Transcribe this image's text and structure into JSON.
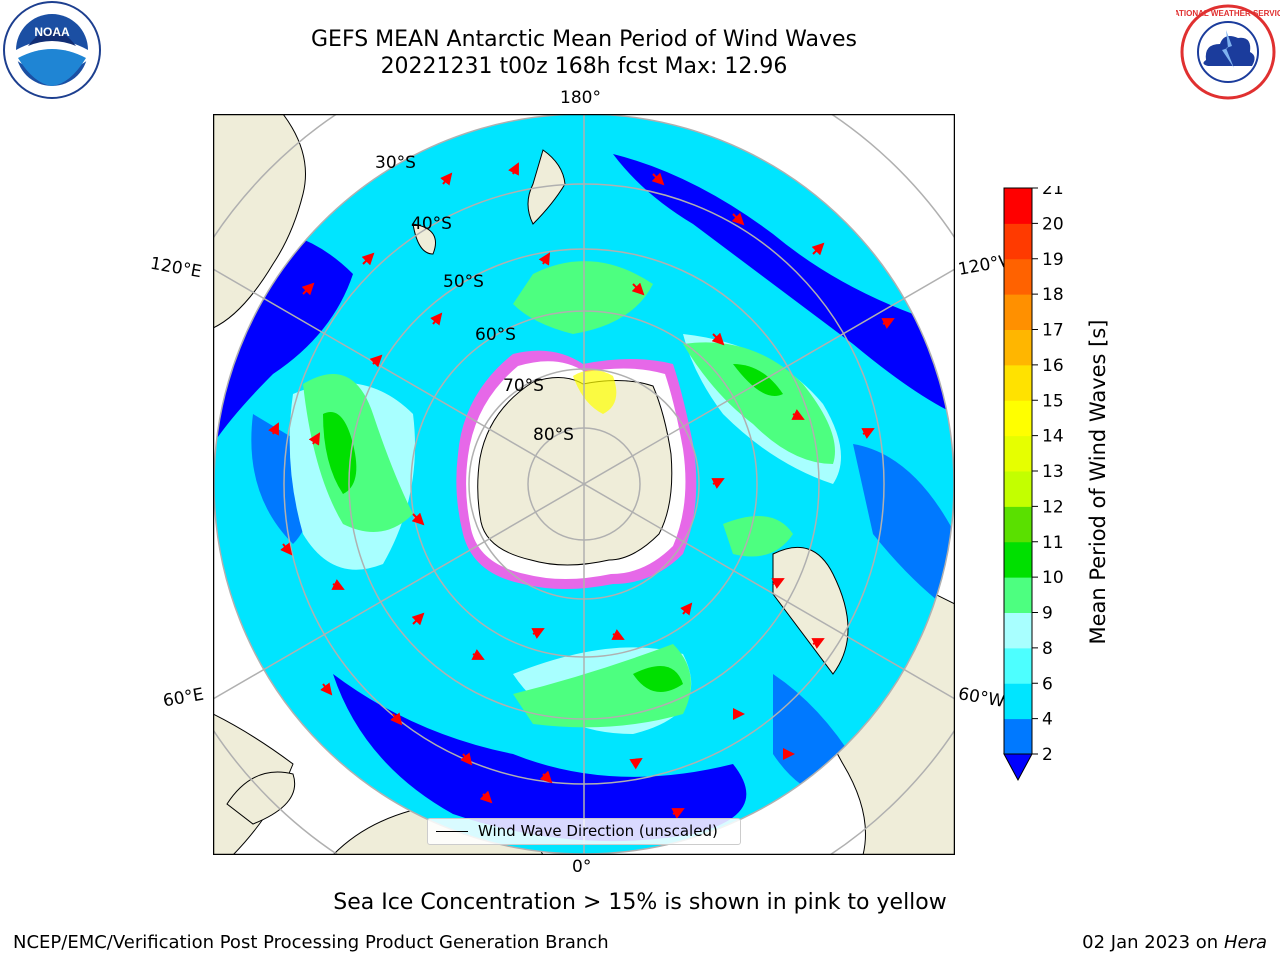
{
  "header": {
    "title_line1": "GEFS MEAN Antarctic Mean Period of Wind Waves",
    "title_line2": "20221231 t00z 168h fcst   Max: 12.96"
  },
  "logos": {
    "left": {
      "icon": "noaa-logo",
      "text": "NOAA"
    },
    "right": {
      "icon": "national-weather-service-logo",
      "text": "NATIONAL WEATHER SERVICE"
    }
  },
  "map": {
    "projection": "south-polar-stereographic",
    "longitude_labels": [
      "180°",
      "120°E",
      "120°W",
      "60°E",
      "60°W",
      "0°"
    ],
    "latitude_labels": [
      "30°S",
      "40°S",
      "50°S",
      "60°S",
      "70°S",
      "80°S"
    ],
    "land_color": "#efedd9",
    "legend_label": "Wind Wave Direction (unscaled)",
    "arrow_color": "#ff0000"
  },
  "colorbar": {
    "label": "Mean Period of Wind Waves [s]",
    "ticks": [
      "2",
      "4",
      "6",
      "8",
      "9",
      "10",
      "11",
      "12",
      "13",
      "14",
      "15",
      "16",
      "17",
      "18",
      "19",
      "20",
      "21"
    ],
    "colors": [
      "#0079ff",
      "#00e5ff",
      "#4dffff",
      "#a8ffff",
      "#4dff80",
      "#00e000",
      "#5ae000",
      "#c3ff00",
      "#e6ff00",
      "#ffff00",
      "#ffe200",
      "#ffb600",
      "#ff9000",
      "#ff6200",
      "#ff3a00",
      "#ff0000"
    ],
    "under_color": "#0000ff"
  },
  "subtitle": "Sea Ice Concentration > 15% is shown in pink to yellow",
  "footer": {
    "left": "NCEP/EMC/Verification Post Processing Product Generation Branch",
    "right_date": "02 Jan 2023 on ",
    "right_host": "Hera"
  }
}
